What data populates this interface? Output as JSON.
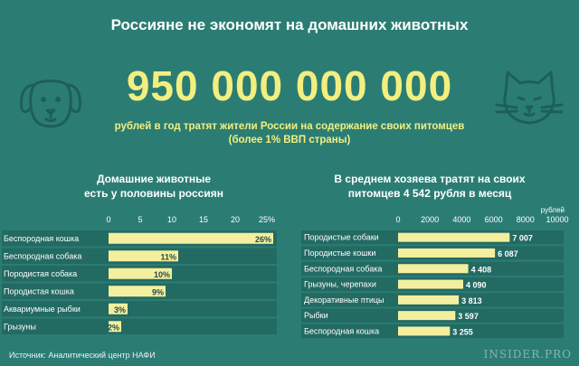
{
  "header": {
    "title": "Россияне не экономят на домашних животных",
    "big_number": "950 000 000 000",
    "subtitle_line1": "рублей в год тратят жители России на содержание своих питомцев",
    "subtitle_line2": "(более 1% ВВП страны)"
  },
  "icons": {
    "left": "dog-icon",
    "right": "cat-icon"
  },
  "colors": {
    "background": "#2b7d74",
    "bar": "#f3ef9f",
    "row_band": "#236a62",
    "accent_text": "#f3ef7f"
  },
  "chart_data": [
    {
      "type": "bar",
      "orientation": "horizontal",
      "title_line1": "Домашние животные",
      "title_line2": "есть у половины россиян",
      "categories": [
        "Беспородная кошка",
        "Беспородная собака",
        "Породистая собака",
        "Породистая кошка",
        "Аквариумные рыбки",
        "Грызуны"
      ],
      "values": [
        26,
        11,
        10,
        9,
        3,
        2
      ],
      "value_labels": [
        "26%",
        "11%",
        "10%",
        "9%",
        "3%",
        "2%"
      ],
      "ticks": [
        "0",
        "5",
        "10",
        "15",
        "20",
        "25%"
      ],
      "tick_values": [
        0,
        5,
        10,
        15,
        20,
        25
      ],
      "xlim": [
        0,
        25
      ],
      "unit": "%"
    },
    {
      "type": "bar",
      "orientation": "horizontal",
      "title_line1": "В среднем хозяева тратят на своих",
      "title_line2": "питомцев 4 542 рубля в месяц",
      "unit_label": "рублей",
      "categories": [
        "Породистые собаки",
        "Породистые кошки",
        "Беспородная собака",
        "Грызуны, черепахи",
        "Декоративные птицы",
        "Рыбки",
        "Беспородная кошка"
      ],
      "values": [
        7007,
        6087,
        4408,
        4090,
        3813,
        3597,
        3255
      ],
      "value_labels": [
        "7 007",
        "6 087",
        "4 408",
        "4 090",
        "3 813",
        "3 597",
        "3 255"
      ],
      "ticks": [
        "0",
        "2000",
        "4000",
        "6000",
        "8000",
        "10000"
      ],
      "tick_values": [
        0,
        2000,
        4000,
        6000,
        8000,
        10000
      ],
      "xlim": [
        0,
        10000
      ]
    }
  ],
  "footer": {
    "source": "Источник: Аналитический центр НАФИ",
    "logo": "INSIDER.PRO"
  }
}
